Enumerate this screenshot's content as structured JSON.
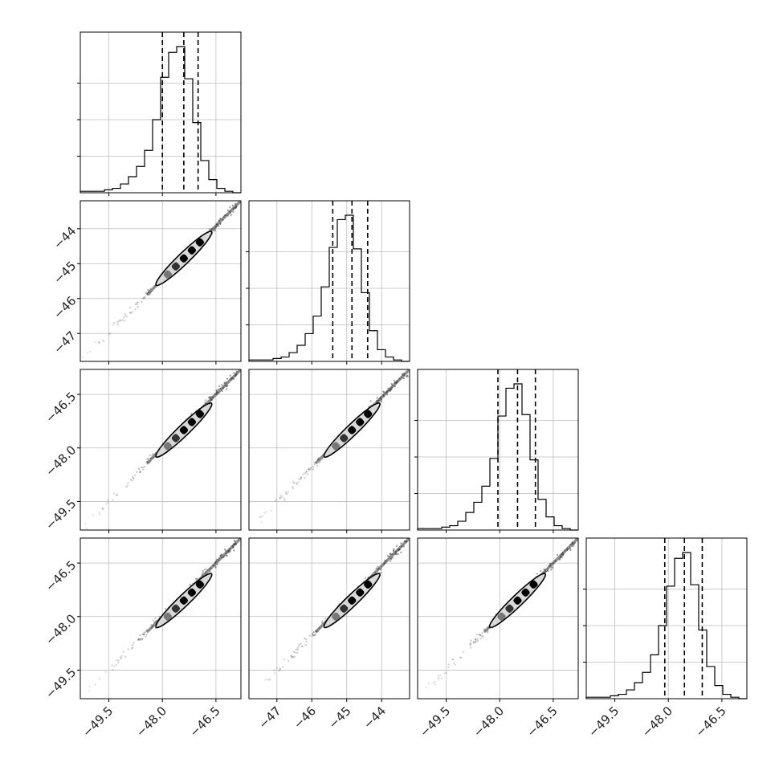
{
  "chart_data": {
    "type": "corner",
    "grid": true,
    "legend": "none",
    "n_params": 4,
    "params": [
      {
        "range": [
          -50.3,
          -45.8
        ],
        "ticks": [
          -49.5,
          -48.0,
          -46.5
        ],
        "tick_labels": [
          "−49.5",
          "−48.0",
          "−46.5"
        ],
        "quantiles": [
          -48.0,
          -47.4,
          -47.0
        ]
      },
      {
        "range": [
          -47.8,
          -43.2
        ],
        "ticks": [
          -47,
          -46,
          -45,
          -44
        ],
        "tick_labels": [
          "−47",
          "−46",
          "−45",
          "−44"
        ],
        "quantiles": [
          -45.4,
          -44.85,
          -44.4
        ]
      },
      {
        "range": [
          -50.3,
          -45.8
        ],
        "ticks": [
          -49.5,
          -48.0,
          -46.5
        ],
        "tick_labels": [
          "−49.5",
          "−48.0",
          "−46.5"
        ],
        "quantiles": [
          -48.05,
          -47.5,
          -47.0
        ]
      },
      {
        "range": [
          -50.3,
          -45.8
        ],
        "ticks": [
          -49.5,
          -48.0,
          -46.5
        ],
        "tick_labels": [
          "−49.5",
          "−48.0",
          "−46.5"
        ],
        "quantiles": [
          -48.1,
          -47.55,
          -47.05
        ]
      }
    ],
    "histograms": [
      {
        "counts": [
          1,
          1,
          1,
          2,
          3,
          6,
          11,
          18,
          29,
          50,
          79,
          96,
          100,
          78,
          48,
          22,
          9,
          3,
          1,
          0
        ]
      },
      {
        "counts": [
          1,
          1,
          1,
          2,
          3,
          6,
          11,
          19,
          31,
          51,
          78,
          97,
          100,
          77,
          47,
          21,
          8,
          3,
          1,
          0
        ]
      },
      {
        "counts": [
          1,
          1,
          1,
          2,
          3,
          6,
          12,
          19,
          30,
          49,
          78,
          97,
          100,
          79,
          48,
          21,
          9,
          3,
          1,
          0
        ]
      },
      {
        "counts": [
          1,
          1,
          1,
          2,
          3,
          6,
          11,
          18,
          30,
          50,
          77,
          96,
          100,
          78,
          47,
          22,
          9,
          3,
          1,
          0
        ]
      }
    ]
  }
}
